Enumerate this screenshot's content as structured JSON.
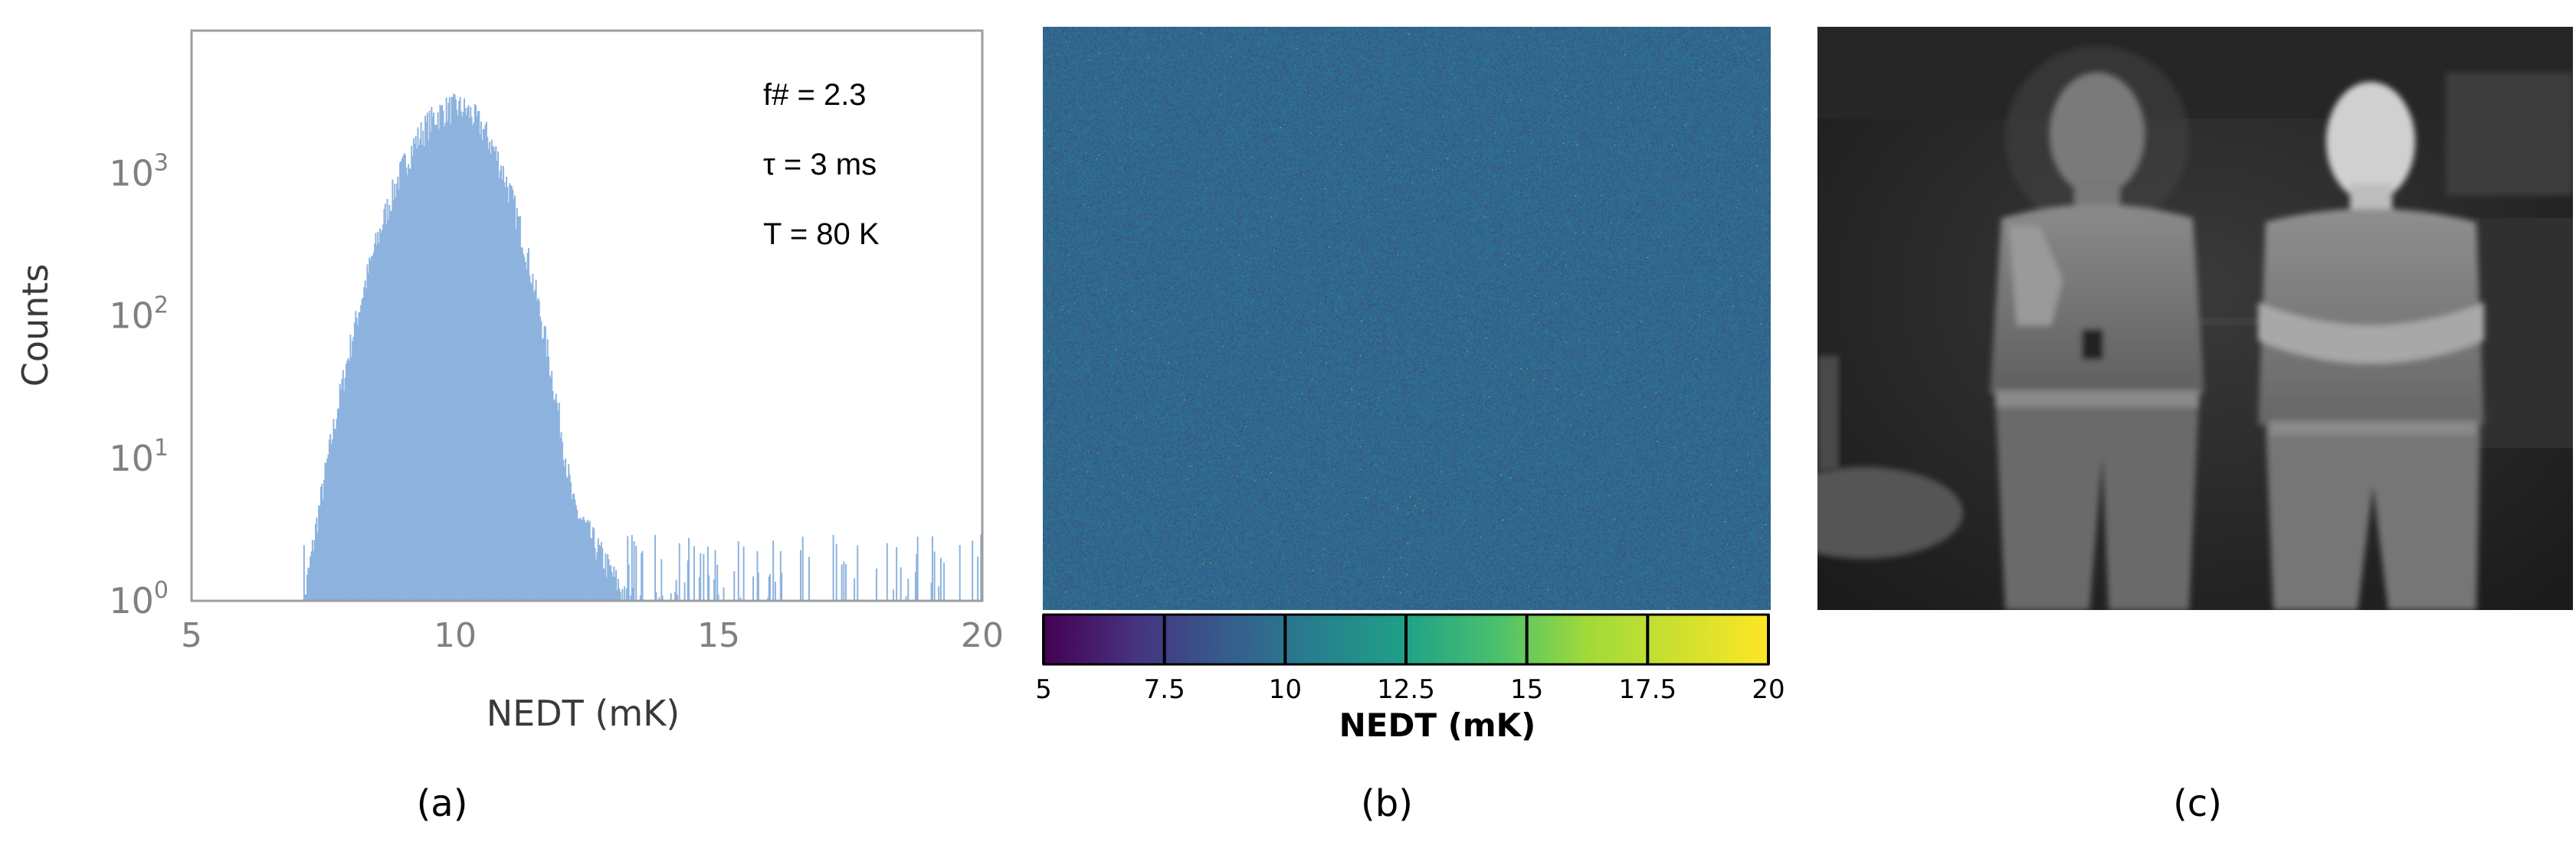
{
  "chart_data": [
    {
      "type": "bar",
      "panel": "(a)",
      "xlabel": "NEDT (mK)",
      "ylabel": "Counts",
      "xlim": [
        5,
        20
      ],
      "ylim": [
        1,
        10000
      ],
      "yscale": "log",
      "xticks": [
        "5",
        "10",
        "15",
        "20"
      ],
      "yticks": [
        {
          "base": "10",
          "exp": "0"
        },
        {
          "base": "10",
          "exp": "1"
        },
        {
          "base": "10",
          "exp": "2"
        },
        {
          "base": "10",
          "exp": "3"
        }
      ],
      "annotations": [
        "f# = 2.3",
        "τ = 3 ms",
        "T = 80 K"
      ],
      "bar_color": "#8db3de",
      "mode_x": 10.0,
      "peak_count": 2900,
      "x_range": [
        7.1,
        20
      ],
      "grid": false
    },
    {
      "type": "heatmap",
      "panel": "(b)",
      "colorbar_label": "NEDT (mK)",
      "colorbar_range": [
        5,
        20
      ],
      "colorbar_ticks": [
        "5",
        "7.5",
        "10",
        "12.5",
        "15",
        "17.5",
        "20"
      ],
      "colormap": "viridis",
      "typical_value": 10
    }
  ],
  "panel_c": {
    "type": "thermal-image",
    "content": "thermal-image-two-people"
  },
  "captions": {
    "a": "(a)",
    "b": "(b)",
    "c": "(c)"
  }
}
